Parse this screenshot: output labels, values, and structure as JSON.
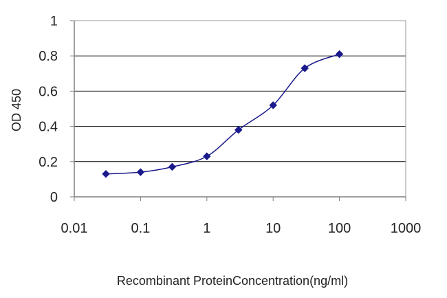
{
  "chart_data": {
    "type": "line",
    "title": "",
    "xlabel": "Recombinant ProteinConcentration(ng/ml)",
    "ylabel": "OD 450",
    "x_scale": "log",
    "xlim": [
      0.01,
      1000
    ],
    "ylim": [
      0,
      1
    ],
    "x_ticks": [
      "0.01",
      "0.1",
      "1",
      "10",
      "100",
      "1000"
    ],
    "y_ticks": [
      "0",
      "0.2",
      "0.4",
      "0.6",
      "0.8",
      "1"
    ],
    "grid": "horizontal",
    "legend": "none",
    "series": [
      {
        "x": [
          0.03,
          0.1,
          0.3,
          1,
          3,
          10,
          30,
          100
        ],
        "y": [
          0.13,
          0.14,
          0.17,
          0.23,
          0.38,
          0.52,
          0.73,
          0.81
        ],
        "color": "#1a1a8c",
        "marker": "diamond"
      }
    ],
    "colors": {
      "plot_background": "#ffffff",
      "gridline": "#000000",
      "axis": "#7f7f7f",
      "series": "#1a1a8c"
    }
  }
}
